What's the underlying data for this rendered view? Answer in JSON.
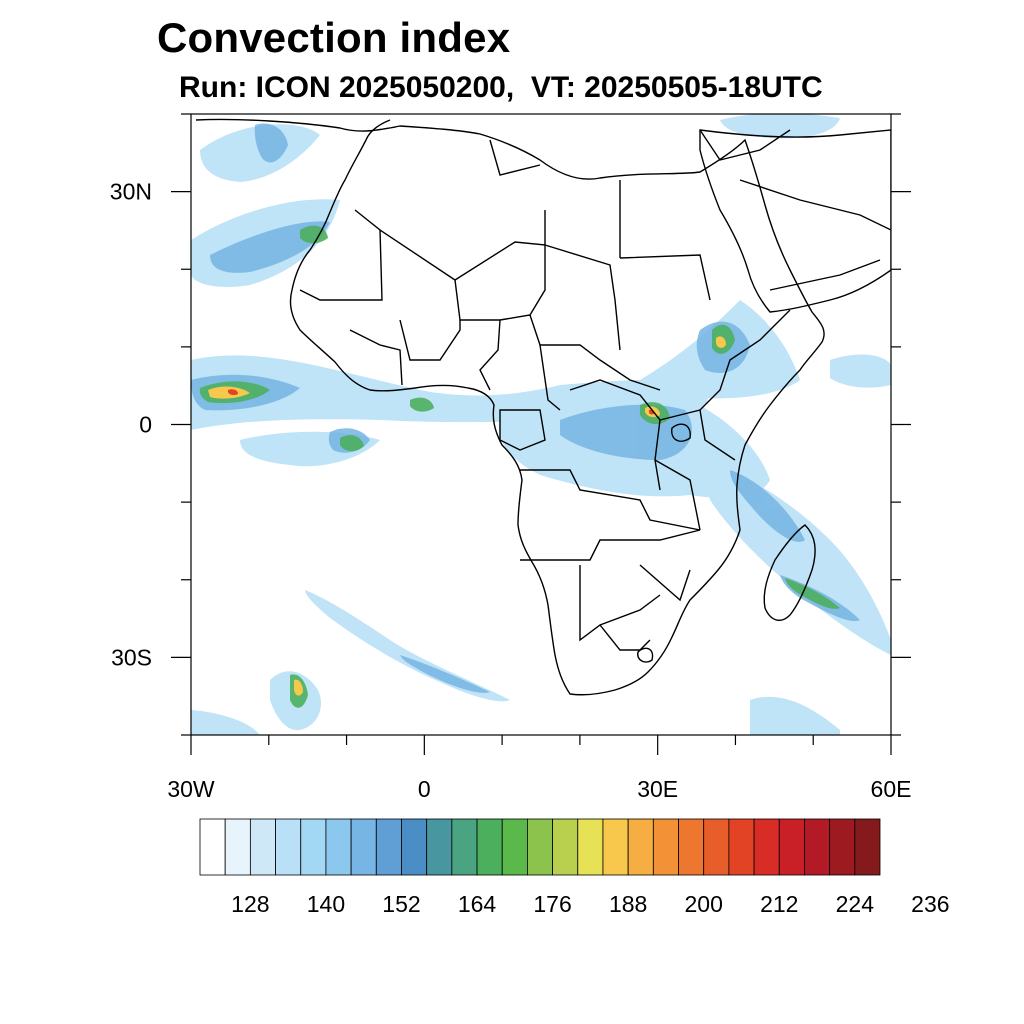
{
  "title": "Convection index",
  "subtitle": "Run: ICON 2025050200,  VT: 20250505-18UTC",
  "map": {
    "extent": {
      "lon": [
        -30,
        60
      ],
      "lat": [
        -40,
        40
      ]
    },
    "lon_ticks": [
      {
        "value": -30,
        "label": "30W"
      },
      {
        "value": 0,
        "label": "0"
      },
      {
        "value": 30,
        "label": "30E"
      },
      {
        "value": 60,
        "label": "60E"
      }
    ],
    "lat_ticks": [
      {
        "value": 30,
        "label": "30N"
      },
      {
        "value": 0,
        "label": "0"
      },
      {
        "value": -30,
        "label": "30S"
      }
    ]
  },
  "colorbar": {
    "colors": [
      "#ffffff",
      "#e8f4fb",
      "#cfe8f7",
      "#b9e0f7",
      "#a3d8f4",
      "#8cc7ee",
      "#76b5e4",
      "#5f9fd6",
      "#4b8ec6",
      "#4896a0",
      "#4aa482",
      "#4caf5e",
      "#5bb84a",
      "#8cc34d",
      "#b8d04e",
      "#e7e155",
      "#f7c84b",
      "#f6ad41",
      "#f39137",
      "#ee7730",
      "#e85e2a",
      "#e24325",
      "#d82d27",
      "#c92028",
      "#b41a25",
      "#9c1a20",
      "#841a1c"
    ],
    "labels": [
      "128",
      "140",
      "152",
      "164",
      "176",
      "188",
      "200",
      "212",
      "224",
      "236"
    ]
  }
}
